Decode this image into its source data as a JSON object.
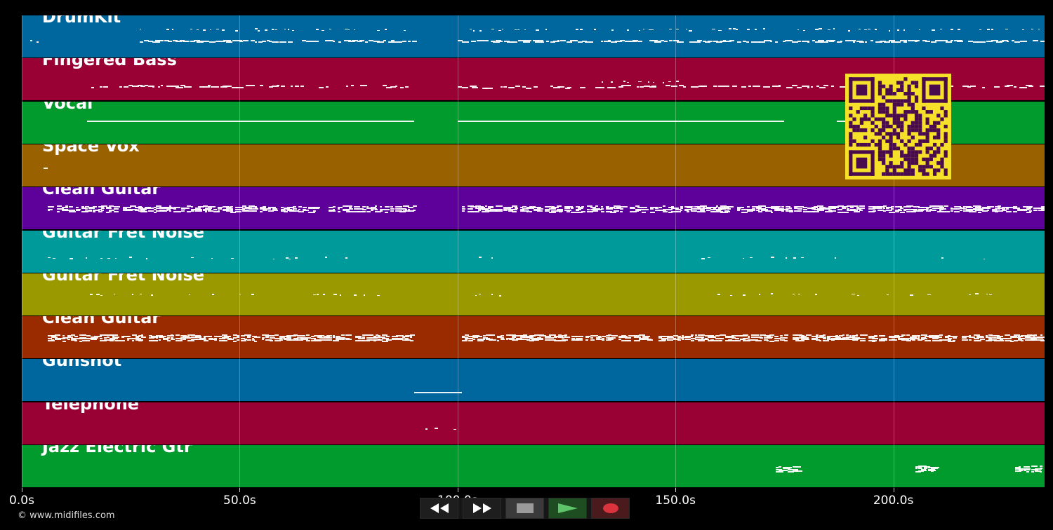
{
  "player": {
    "copyright": "© www.midifiles.com",
    "timeline_ticks": [
      "0.0s",
      "50.0s",
      "100.0s",
      "150.0s",
      "200.0s"
    ],
    "tick_seconds": [
      0,
      50,
      100,
      150,
      200
    ],
    "duration_seconds": 234.7
  },
  "tracks": [
    {
      "name": "DrumKit",
      "color": "#00669e"
    },
    {
      "name": "Fingered Bass",
      "color": "#990033"
    },
    {
      "name": "Vocal",
      "color": "#009a2d"
    },
    {
      "name": "Space Vox",
      "color": "#9a6100"
    },
    {
      "name": "Clean Guitar",
      "color": "#5e009a"
    },
    {
      "name": "Guitar Fret Noise",
      "color": "#009a9a"
    },
    {
      "name": "Guitar Fret Noise",
      "color": "#9a9a00"
    },
    {
      "name": "Clean Guitar",
      "color": "#9a2a00"
    },
    {
      "name": "Gunshot",
      "color": "#00669e"
    },
    {
      "name": "Telephone",
      "color": "#990033"
    },
    {
      "name": "Jazz Electric Gtr",
      "color": "#009a2d"
    }
  ],
  "transport": {
    "rewind_icon": "rewind-icon",
    "fast_forward_icon": "fast-forward-icon",
    "stop_icon": "stop-icon",
    "play_icon": "play-icon",
    "record_icon": "record-icon",
    "colors": {
      "play": "#5ec46a",
      "record": "#d9333d",
      "stop": "#9a9a9a"
    }
  },
  "qr": {
    "icon": "qr-code-icon",
    "fg": "#4a0a4e",
    "bg": "#f5e12a"
  }
}
